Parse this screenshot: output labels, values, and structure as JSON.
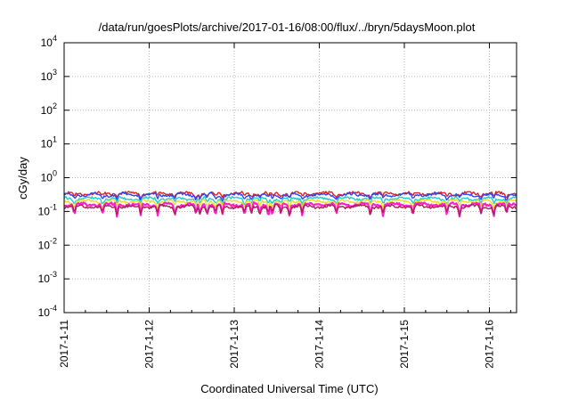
{
  "chart_data": {
    "type": "line",
    "title": "/data/run/goesPlots/archive/2017-01-16/08:00/flux/../bryn/5daysMoon.plot",
    "xlabel": "Coordinated Universal Time (UTC)",
    "ylabel": "cGy/day",
    "yscale": "log",
    "ylim": [
      0.0001,
      10000
    ],
    "xlim": [
      "2017-01-11",
      "2017-01-16 09:00"
    ],
    "grid": true,
    "x_ticks": [
      "2017-1-11",
      "2017-1-12",
      "2017-1-13",
      "2017-1-14",
      "2017-1-15",
      "2017-1-16"
    ],
    "y_ticks": [
      {
        "base": "10",
        "exp": "-4",
        "value": 0.0001
      },
      {
        "base": "10",
        "exp": "-3",
        "value": 0.001
      },
      {
        "base": "10",
        "exp": "-2",
        "value": 0.01
      },
      {
        "base": "10",
        "exp": "-1",
        "value": 0.1
      },
      {
        "base": "10",
        "exp": "0",
        "value": 1
      },
      {
        "base": "10",
        "exp": "1",
        "value": 10
      },
      {
        "base": "10",
        "exp": "2",
        "value": 100
      },
      {
        "base": "10",
        "exp": "3",
        "value": 1000
      },
      {
        "base": "10",
        "exp": "4",
        "value": 10000
      }
    ],
    "series": [
      {
        "color": "#dd2222",
        "baseline": 0.34,
        "dip_factor": 0.8
      },
      {
        "color": "#3344ee",
        "baseline": 0.31,
        "dip_factor": 0.75
      },
      {
        "color": "#22cccc",
        "baseline": 0.24,
        "dip_factor": 0.7
      },
      {
        "color": "#eedd22",
        "baseline": 0.2,
        "dip_factor": 0.68
      },
      {
        "color": "#ff22cc",
        "baseline": 0.16,
        "dip_factor": 0.45
      },
      {
        "color": "#aa2255",
        "baseline": 0.14,
        "dip_factor": 0.6
      }
    ],
    "dips_days": [
      0.12,
      0.45,
      0.62,
      0.9,
      1.1,
      1.3,
      1.55,
      1.6,
      1.68,
      1.78,
      1.86,
      2.12,
      2.2,
      2.3,
      2.4,
      2.45,
      2.55,
      2.65,
      2.8,
      3.2,
      3.6,
      3.75,
      4.1,
      4.5,
      4.65,
      4.9,
      5.05,
      5.2
    ]
  }
}
